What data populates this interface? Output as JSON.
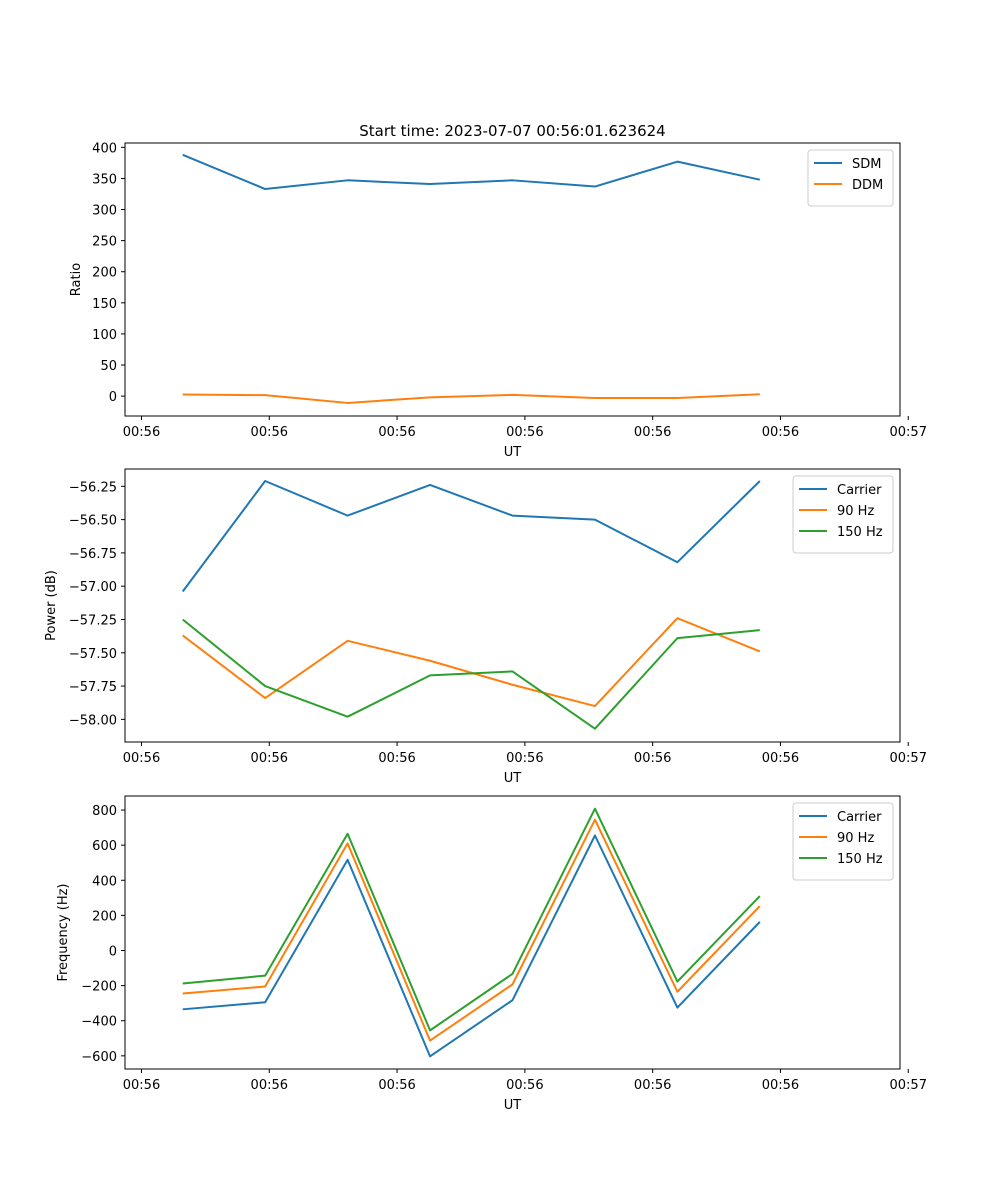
{
  "figure_title": "Start time: 2023-07-07 00:56:01.623624",
  "chart_data": [
    {
      "type": "line",
      "title": "Start time: 2023-07-07 00:56:01.623624",
      "xlabel": "UT",
      "ylabel": "Ratio",
      "x": [
        0.5,
        1.5,
        2.5,
        3.5,
        4.5,
        5.5,
        6.5,
        7.5
      ],
      "xlim": [
        -0.2,
        9.2
      ],
      "xticks": [
        0,
        1.55,
        3.1,
        4.65,
        6.2,
        7.75,
        9.3
      ],
      "xticklabels": [
        "00:56",
        "00:56",
        "00:56",
        "00:56",
        "00:56",
        "00:56",
        "00:57"
      ],
      "ylim": [
        -32,
        407
      ],
      "yticks": [
        0,
        50,
        100,
        150,
        200,
        250,
        300,
        350,
        400
      ],
      "yticklabels": [
        "0",
        "50",
        "100",
        "150",
        "200",
        "250",
        "300",
        "350",
        "400"
      ],
      "legend": "top-right",
      "series": [
        {
          "name": "SDM",
          "color": "#1f77b4",
          "values": [
            388,
            333,
            347,
            341,
            347,
            337,
            377,
            348
          ]
        },
        {
          "name": "DDM",
          "color": "#ff7f0e",
          "values": [
            2.5,
            1.5,
            -11,
            -2,
            2,
            -3,
            -3,
            3
          ]
        }
      ]
    },
    {
      "type": "line",
      "xlabel": "UT",
      "ylabel": "Power (dB)",
      "x": [
        0.5,
        1.5,
        2.5,
        3.5,
        4.5,
        5.5,
        6.5,
        7.5
      ],
      "xlim": [
        -0.2,
        9.2
      ],
      "xticks": [
        0,
        1.55,
        3.1,
        4.65,
        6.2,
        7.75,
        9.3
      ],
      "xticklabels": [
        "00:56",
        "00:56",
        "00:56",
        "00:56",
        "00:56",
        "00:56",
        "00:57"
      ],
      "ylim": [
        -58.17,
        -56.12
      ],
      "yticks": [
        -58.0,
        -57.75,
        -57.5,
        -57.25,
        -57.0,
        -56.75,
        -56.5,
        -56.25
      ],
      "yticklabels": [
        "−58.00",
        "−57.75",
        "−57.50",
        "−57.25",
        "−57.00",
        "−56.75",
        "−56.50",
        "−56.25"
      ],
      "legend": "top-right",
      "series": [
        {
          "name": "Carrier",
          "color": "#1f77b4",
          "values": [
            -57.04,
            -56.21,
            -56.47,
            -56.24,
            -56.47,
            -56.5,
            -56.82,
            -56.21
          ]
        },
        {
          "name": "90 Hz",
          "color": "#ff7f0e",
          "values": [
            -57.37,
            -57.84,
            -57.41,
            -57.56,
            -57.74,
            -57.9,
            -57.24,
            -57.49
          ]
        },
        {
          "name": "150 Hz",
          "color": "#2ca02c",
          "values": [
            -57.25,
            -57.75,
            -57.98,
            -57.67,
            -57.64,
            -58.07,
            -57.39,
            -57.33
          ]
        }
      ]
    },
    {
      "type": "line",
      "xlabel": "UT",
      "ylabel": "Frequency (Hz)",
      "x": [
        0.5,
        1.5,
        2.5,
        3.5,
        4.5,
        5.5,
        6.5,
        7.5
      ],
      "xlim": [
        -0.2,
        9.2
      ],
      "xticks": [
        0,
        1.55,
        3.1,
        4.65,
        6.2,
        7.75,
        9.3
      ],
      "xticklabels": [
        "00:56",
        "00:56",
        "00:56",
        "00:56",
        "00:56",
        "00:56",
        "00:57"
      ],
      "ylim": [
        -675,
        880
      ],
      "yticks": [
        -600,
        -400,
        -200,
        0,
        200,
        400,
        600,
        800
      ],
      "yticklabels": [
        "−600",
        "−400",
        "−200",
        "0",
        "200",
        "400",
        "600",
        "800"
      ],
      "legend": "top-right",
      "series": [
        {
          "name": "Carrier",
          "color": "#1f77b4",
          "values": [
            -335,
            -295,
            517,
            -603,
            -283,
            655,
            -325,
            163
          ]
        },
        {
          "name": "90 Hz",
          "color": "#ff7f0e",
          "values": [
            -245,
            -205,
            610,
            -513,
            -193,
            745,
            -235,
            253
          ]
        },
        {
          "name": "150 Hz",
          "color": "#2ca02c",
          "values": [
            -188,
            -143,
            665,
            -455,
            -133,
            808,
            -177,
            310
          ]
        }
      ]
    }
  ]
}
